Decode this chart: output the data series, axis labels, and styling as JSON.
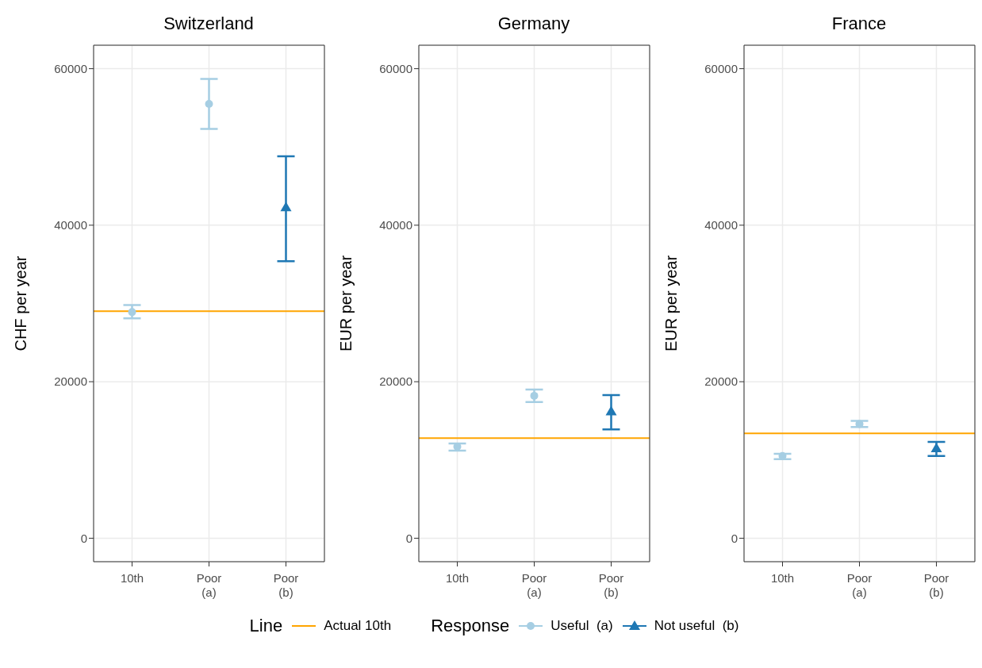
{
  "chart_data": [
    {
      "type": "scatter",
      "title": "Switzerland",
      "ylabel": "CHF per year",
      "categories": [
        "10th",
        "Poor\n(a)",
        "Poor\n(b)"
      ],
      "ylim": [
        -3000,
        63000
      ],
      "yticks": [
        0,
        20000,
        40000,
        60000
      ],
      "grid": true,
      "legend": "bottom",
      "legend_title": "Response",
      "annotations": [
        "Line"
      ],
      "series": [
        {
          "name": "Useful  (a)",
          "color": "#a6cee3",
          "marker": "circle",
          "values": [
            28900,
            55500,
            null
          ],
          "errors": [
            [
              28100,
              29800
            ],
            [
              52300,
              58700
            ],
            null
          ]
        },
        {
          "name": "Not useful  (b)",
          "color": "#1f78b4",
          "marker": "triangle",
          "values": [
            null,
            null,
            42300
          ],
          "errors": [
            null,
            null,
            [
              35400,
              48800
            ]
          ]
        }
      ],
      "ref_lines": [
        {
          "axis": "y",
          "value": 29000,
          "label": "Actual 10th",
          "color": "#ffa500"
        }
      ]
    },
    {
      "type": "scatter",
      "title": "Germany",
      "ylabel": "EUR per year",
      "categories": [
        "10th",
        "Poor\n(a)",
        "Poor\n(b)"
      ],
      "ylim": [
        -3000,
        63000
      ],
      "yticks": [
        0,
        20000,
        40000,
        60000
      ],
      "grid": true,
      "series": [
        {
          "color": "#a6cee3",
          "marker": "circle",
          "values": [
            11700,
            18200,
            null
          ],
          "errors": [
            [
              11200,
              12100
            ],
            [
              17400,
              19000
            ],
            null
          ]
        },
        {
          "color": "#1f78b4",
          "marker": "triangle",
          "values": [
            null,
            null,
            16200
          ],
          "errors": [
            null,
            null,
            [
              13900,
              18300
            ]
          ]
        }
      ],
      "ref_lines": [
        {
          "axis": "y",
          "value": 12800,
          "color": "#ffa500"
        }
      ]
    },
    {
      "type": "scatter",
      "title": "France",
      "ylabel": "EUR per year",
      "categories": [
        "10th",
        "Poor\n(a)",
        "Poor\n(b)"
      ],
      "ylim": [
        -3000,
        63000
      ],
      "yticks": [
        0,
        20000,
        40000,
        60000
      ],
      "grid": true,
      "series": [
        {
          "color": "#a6cee3",
          "marker": "circle",
          "values": [
            10500,
            14600,
            null
          ],
          "errors": [
            [
              10100,
              10800
            ],
            [
              14200,
              15000
            ],
            null
          ]
        },
        {
          "color": "#1f78b4",
          "marker": "triangle",
          "values": [
            null,
            null,
            11500
          ],
          "errors": [
            null,
            null,
            [
              10500,
              12300
            ]
          ]
        }
      ],
      "ref_lines": [
        {
          "axis": "y",
          "value": 13400,
          "color": "#ffa500"
        }
      ]
    }
  ]
}
